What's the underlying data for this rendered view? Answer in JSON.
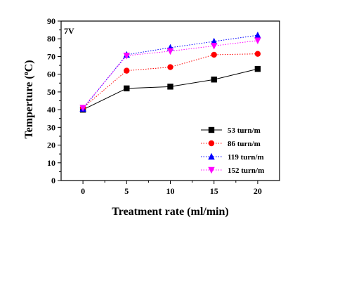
{
  "chart_data": {
    "type": "line",
    "annotation": "7V",
    "xlabel": "Treatment rate (ml/min)",
    "ylabel_prefix": "Temperture (",
    "ylabel_sup": "o",
    "ylabel_suffix": "C)",
    "x": [
      0,
      5,
      10,
      15,
      20
    ],
    "xlim": [
      -2.5,
      22.5
    ],
    "ylim": [
      0,
      90
    ],
    "xticks": [
      0,
      5,
      10,
      15,
      20
    ],
    "yticks": [
      0,
      10,
      20,
      30,
      40,
      50,
      60,
      70,
      80,
      90
    ],
    "grid": false,
    "legend_position": "bottom-right",
    "series": [
      {
        "name": "53 turn/m",
        "values": [
          40,
          52,
          53,
          57,
          63
        ],
        "color": "#000000",
        "marker": "square",
        "line": "solid"
      },
      {
        "name": "86 turn/m",
        "values": [
          41,
          62,
          64,
          71,
          71.5
        ],
        "color": "#ff0000",
        "marker": "circle",
        "line": "dotted"
      },
      {
        "name": "119 turn/m",
        "values": [
          40.5,
          71,
          75,
          78.5,
          82
        ],
        "color": "#0000ff",
        "marker": "triangle-up",
        "line": "dotted"
      },
      {
        "name": "152 turn/m",
        "values": [
          41,
          70.5,
          73,
          76,
          79
        ],
        "color": "#ff00ff",
        "marker": "triangle-down",
        "line": "dotted"
      }
    ]
  }
}
